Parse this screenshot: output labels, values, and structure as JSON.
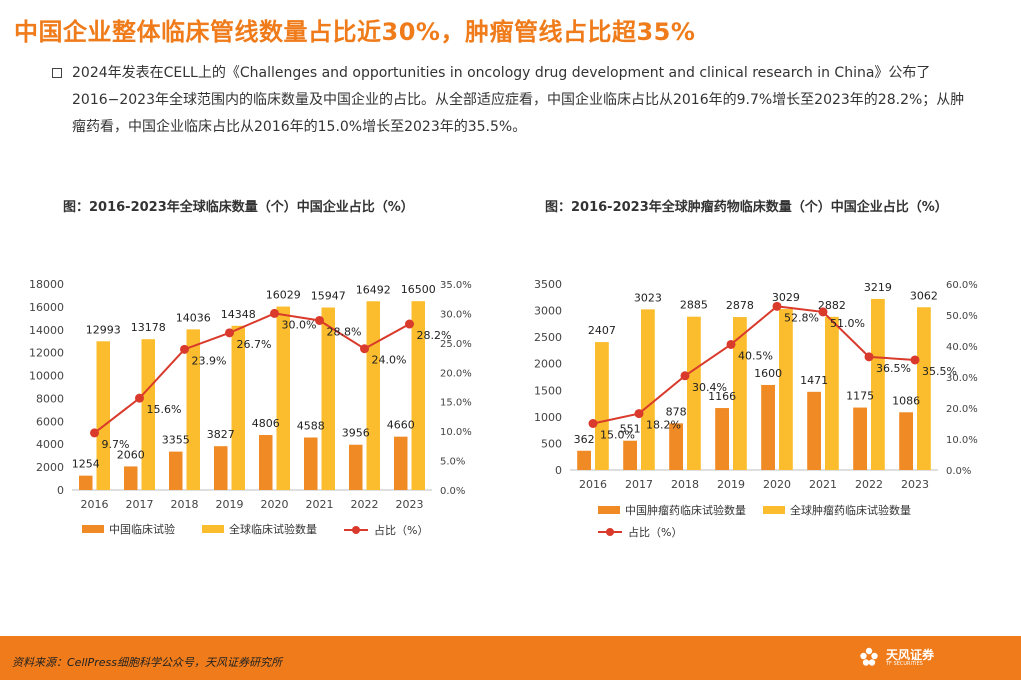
{
  "page": {
    "title": "中国企业整体临床管线数量占比近30%，肿瘤管线占比超35%",
    "paragraph": "2024年发表在CELL上的《Challenges and opportunities in oncology drug development and clinical research in China》公布了2016−2023年全球范围内的临床数量及中国企业的占比。从全部适应症看，中国企业临床占比从2016年的9.7%增长至2023年的28.2%；从肿瘤药看，中国企业临床占比从2016年的15.0%增长至2023年的35.5%。",
    "footer_source": "资料来源：CellPress细胞科学公众号，天风证券研究所",
    "logo_text": "天风证券",
    "logo_sub": "TF SECURITIES"
  },
  "colors": {
    "accent": "#ef7b1a",
    "bar_china": "#f08a24",
    "bar_global": "#fbbd2e",
    "line": "#d93a2b"
  },
  "chart_data": [
    {
      "type": "bar",
      "title": "图：2016-2023年全球临床数量（个）中国企业占比（%）",
      "categories": [
        "2016",
        "2017",
        "2018",
        "2019",
        "2020",
        "2021",
        "2022",
        "2023"
      ],
      "series": [
        {
          "name": "中国临床试验",
          "type": "bar",
          "values": [
            1254,
            2060,
            3355,
            3827,
            4806,
            4588,
            3956,
            4660
          ]
        },
        {
          "name": "全球临床试验数量",
          "type": "bar",
          "values": [
            12993,
            13178,
            14036,
            14348,
            16029,
            15947,
            16492,
            16500
          ]
        },
        {
          "name": "占比（%）",
          "type": "line",
          "axis": "right",
          "values": [
            9.7,
            15.6,
            23.9,
            26.7,
            30.0,
            28.8,
            24.0,
            28.2
          ],
          "labels": [
            "9.7%",
            "15.6%",
            "23.9%",
            "26.7%",
            "30.0%",
            "28.8%",
            "24.0%",
            "28.2%"
          ]
        }
      ],
      "ylim": [
        0,
        18000
      ],
      "yticks": [
        "0",
        "2000",
        "4000",
        "6000",
        "8000",
        "10000",
        "12000",
        "14000",
        "16000",
        "18000"
      ],
      "y2lim": [
        0,
        35
      ],
      "y2ticks": [
        "0.0%",
        "5.0%",
        "10.0%",
        "15.0%",
        "20.0%",
        "25.0%",
        "30.0%",
        "35.0%"
      ],
      "legend_position": "bottom"
    },
    {
      "type": "bar",
      "title": "图：2016-2023年全球肿瘤药物临床数量（个）中国企业占比（%）",
      "categories": [
        "2016",
        "2017",
        "2018",
        "2019",
        "2020",
        "2021",
        "2022",
        "2023"
      ],
      "series": [
        {
          "name": "中国肿瘤药临床试验数量",
          "type": "bar",
          "values": [
            362,
            551,
            878,
            1166,
            1600,
            1471,
            1175,
            1086
          ]
        },
        {
          "name": "全球肿瘤药临床试验数量",
          "type": "bar",
          "values": [
            2407,
            3023,
            2885,
            2878,
            3029,
            2882,
            3219,
            3062
          ]
        },
        {
          "name": "占比（%）",
          "type": "line",
          "axis": "right",
          "values": [
            15.0,
            18.2,
            30.4,
            40.5,
            52.8,
            51.0,
            36.5,
            35.5
          ],
          "labels": [
            "15.0%",
            "18.2%",
            "30.4%",
            "40.5%",
            "52.8%",
            "51.0%",
            "36.5%",
            "35.5%"
          ]
        }
      ],
      "ylim": [
        0,
        3500
      ],
      "yticks": [
        "0",
        "500",
        "1000",
        "1500",
        "2000",
        "2500",
        "3000",
        "3500"
      ],
      "y2lim": [
        0,
        60
      ],
      "y2ticks": [
        "0.0%",
        "10.0%",
        "20.0%",
        "30.0%",
        "40.0%",
        "50.0%",
        "60.0%"
      ],
      "legend_position": "bottom"
    }
  ]
}
